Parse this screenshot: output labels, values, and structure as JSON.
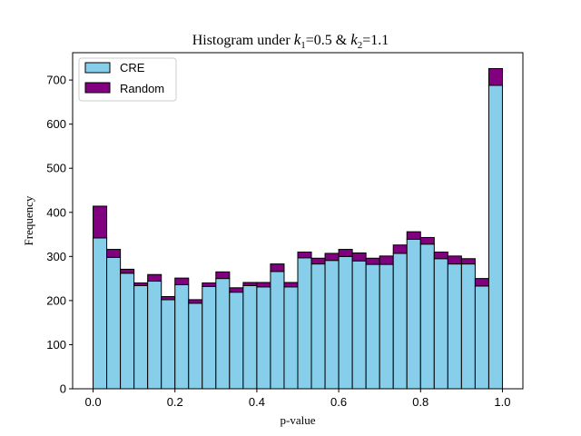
{
  "chart_data": {
    "type": "bar",
    "stacked": true,
    "title": {
      "prefix": "Histogram under ",
      "k1_sym": "k",
      "k1_sub": "1",
      "k1_val": "=0.5 & ",
      "k2_sym": "k",
      "k2_sub": "2",
      "k2_val": "=1.1"
    },
    "xlabel": "p-value",
    "ylabel": "Frequency",
    "xlim": [
      -0.05,
      1.05
    ],
    "ylim": [
      0,
      762
    ],
    "bin_width": 0.0333,
    "xticks": [
      "0.0",
      "0.2",
      "0.4",
      "0.6",
      "0.8",
      "1.0"
    ],
    "xtick_values": [
      0.0,
      0.2,
      0.4,
      0.6,
      0.8,
      1.0
    ],
    "yticks": [
      "0",
      "100",
      "200",
      "300",
      "400",
      "500",
      "600",
      "700"
    ],
    "ytick_values": [
      0,
      100,
      200,
      300,
      400,
      500,
      600,
      700
    ],
    "legend_position": "top-left",
    "series": [
      {
        "name": "CRE",
        "color": "#87ceeb",
        "values": [
          342,
          298,
          262,
          234,
          244,
          202,
          236,
          194,
          232,
          250,
          219,
          234,
          231,
          266,
          231,
          297,
          283,
          291,
          300,
          290,
          282,
          282,
          307,
          339,
          328,
          295,
          283,
          283,
          233,
          688
        ]
      },
      {
        "name": "Random",
        "color": "#800080",
        "values": [
          72,
          18,
          9,
          6,
          15,
          7,
          15,
          8,
          8,
          15,
          10,
          7,
          10,
          17,
          10,
          13,
          13,
          16,
          16,
          18,
          14,
          19,
          19,
          17,
          15,
          15,
          18,
          12,
          17,
          38
        ]
      }
    ]
  }
}
